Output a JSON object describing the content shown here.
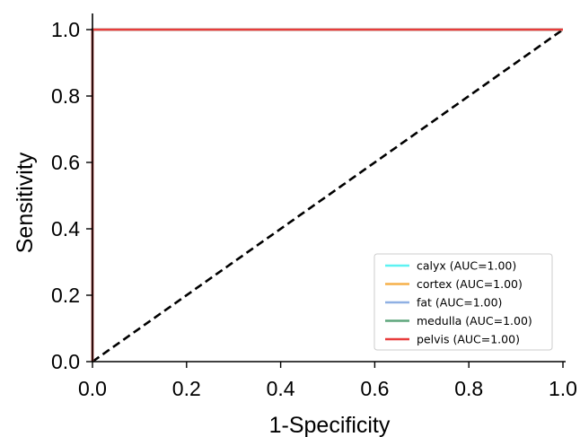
{
  "chart_data": {
    "type": "line",
    "xlabel": "1-Specificity",
    "ylabel": "Sensitivity",
    "xlim": [
      0.0,
      1.0
    ],
    "ylim": [
      0.0,
      1.0
    ],
    "xticks": [
      "0.0",
      "0.2",
      "0.4",
      "0.6",
      "0.8",
      "1.0"
    ],
    "yticks": [
      "0.0",
      "0.2",
      "0.4",
      "0.6",
      "0.8",
      "1.0"
    ],
    "grid": false,
    "legend_position": "bottom-right",
    "series": [
      {
        "name": "calyx (AUC=1.00)",
        "color": "#5ef2f2",
        "x": [
          0,
          0,
          1
        ],
        "y": [
          0,
          1,
          1
        ]
      },
      {
        "name": "cortex (AUC=1.00)",
        "color": "#f5b04a",
        "x": [
          0,
          0,
          1
        ],
        "y": [
          0,
          1,
          1
        ]
      },
      {
        "name": "fat (AUC=1.00)",
        "color": "#8fb0e3",
        "x": [
          0,
          0,
          1
        ],
        "y": [
          0,
          1,
          1
        ]
      },
      {
        "name": "medulla (AUC=1.00)",
        "color": "#5ea67c",
        "x": [
          0,
          0,
          1
        ],
        "y": [
          0,
          1,
          1
        ]
      },
      {
        "name": "pelvis (AUC=1.00)",
        "color": "#e83c3c",
        "x": [
          0,
          0,
          1
        ],
        "y": [
          0,
          1,
          1
        ]
      }
    ],
    "reference_line": {
      "x": [
        0,
        1
      ],
      "y": [
        0,
        1
      ],
      "style": "dashed",
      "color": "#000000"
    }
  }
}
